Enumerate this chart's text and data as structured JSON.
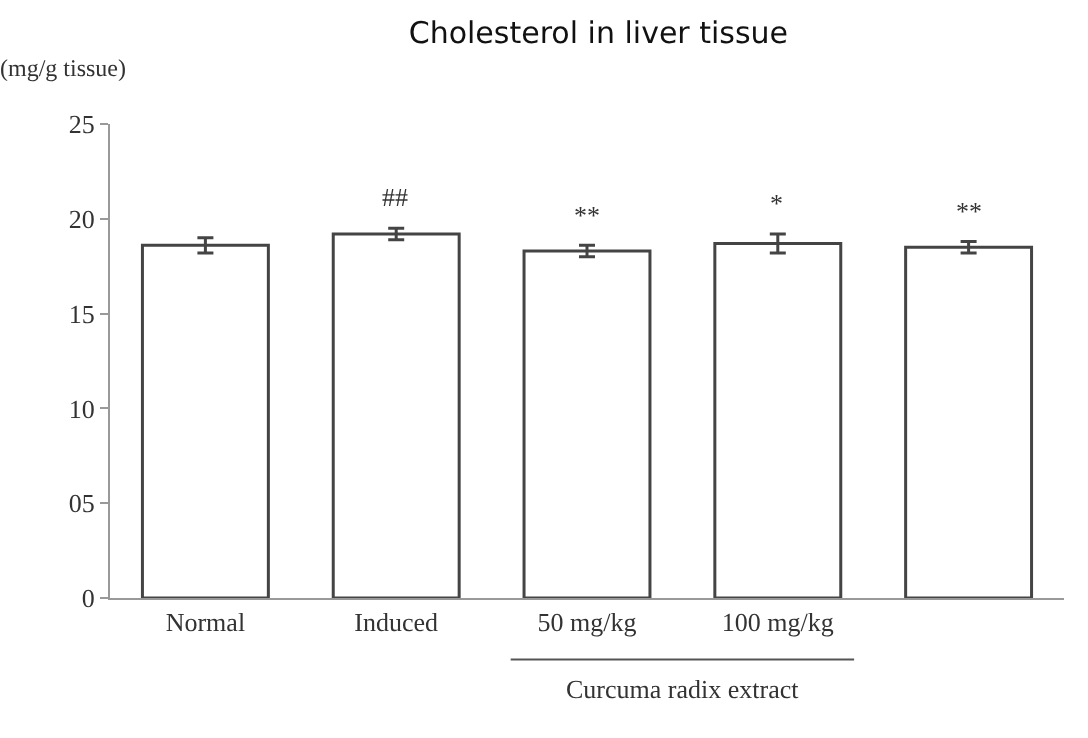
{
  "chart_data": {
    "type": "bar",
    "title": "Cholesterol in liver tissue",
    "ylabel": "(mg/g tissue)",
    "categories": [
      "Normal",
      "Induced",
      "50 mg/kg",
      "100 mg/kg",
      null
    ],
    "values": [
      18.6,
      19.2,
      18.3,
      18.7,
      18.5
    ],
    "errors": [
      0.4,
      0.3,
      0.3,
      0.5,
      0.3
    ],
    "color": "#ffffff",
    "ylim": [
      0,
      25
    ],
    "yticks": [
      0,
      {
        "value": 5,
        "label": "05"
      },
      10,
      15,
      20,
      25
    ],
    "grid": false,
    "annotations": [
      "##",
      "**",
      "*",
      "**",
      "Curcuma radix extract"
    ]
  }
}
